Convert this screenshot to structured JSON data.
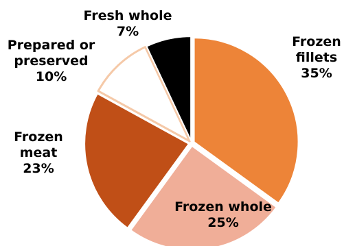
{
  "chart_data": {
    "type": "pie",
    "title": "",
    "slices": [
      {
        "name": "Frozen fillets",
        "label_lines": [
          "Frozen",
          "fillets"
        ],
        "value": 35,
        "value_label": "35%",
        "color": "#ED8438"
      },
      {
        "name": "Frozen whole",
        "label_lines": [
          "Frozen whole"
        ],
        "value": 25,
        "value_label": "25%",
        "color": "#F0AE98"
      },
      {
        "name": "Frozen meat",
        "label_lines": [
          "Frozen",
          "meat"
        ],
        "value": 23,
        "value_label": "23%",
        "color": "#C04F17"
      },
      {
        "name": "Prepared or preserved",
        "label_lines": [
          "Prepared or",
          "preserved"
        ],
        "value": 10,
        "value_label": "10%",
        "color": "#FFFFFF",
        "stroke": "#F5C9A8"
      },
      {
        "name": "Fresh whole",
        "label_lines": [
          "Fresh whole"
        ],
        "value": 7,
        "value_label": "7%",
        "color": "#000000"
      }
    ]
  }
}
